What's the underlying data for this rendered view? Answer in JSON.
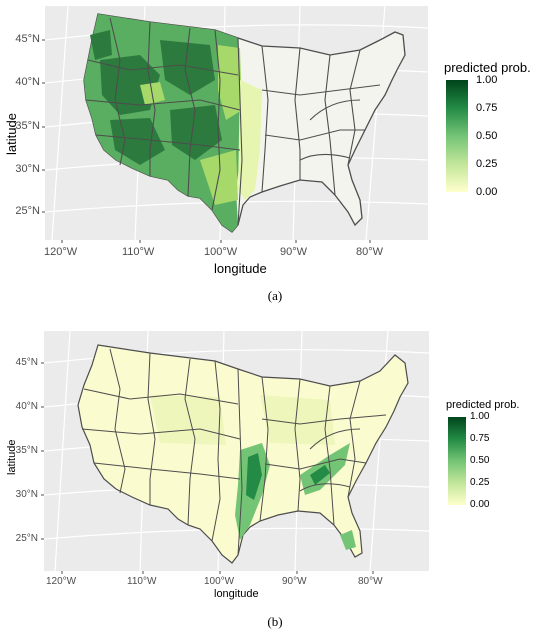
{
  "panels": [
    {
      "id": "a",
      "caption": "(a)",
      "xlabel": "longitude",
      "ylabel": "latitude",
      "xticks": [
        "120°W",
        "110°W",
        "100°W",
        "90°W",
        "80°W"
      ],
      "yticks": [
        "45°N",
        "40°N",
        "35°N",
        "30°N",
        "25°N"
      ],
      "legend": {
        "title": "predicted prob.",
        "ticks": [
          "1.00",
          "0.75",
          "0.50",
          "0.25",
          "0.00"
        ]
      }
    },
    {
      "id": "b",
      "caption": "(b)",
      "xlabel": "longitude",
      "ylabel": "latitude",
      "xticks": [
        "120°W",
        "110°W",
        "100°W",
        "90°W",
        "80°W"
      ],
      "yticks": [
        "45°N",
        "40°N",
        "35°N",
        "30°N",
        "25°N"
      ],
      "legend": {
        "title": "predicted prob.",
        "ticks": [
          "1.00",
          "0.75",
          "0.50",
          "0.25",
          "0.00"
        ]
      }
    }
  ],
  "colors": {
    "panel_bg": "#ebebeb",
    "grid": "#ffffff",
    "outline": "#4d4d4d",
    "high": "#00441b",
    "low": "#ffffcc"
  }
}
